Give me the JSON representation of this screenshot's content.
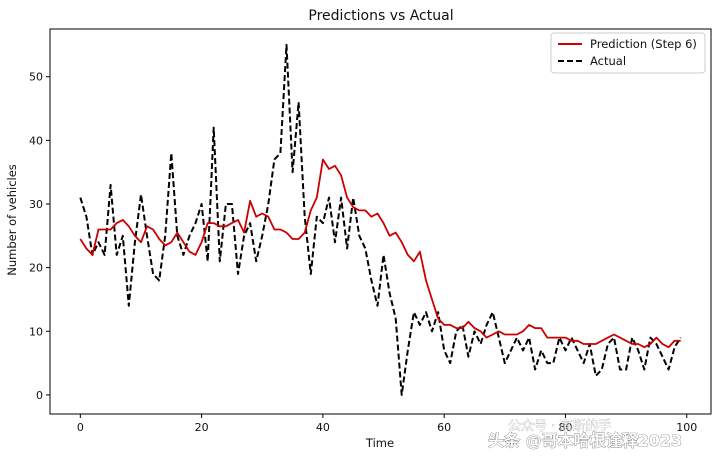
{
  "chart_data": {
    "type": "line",
    "title": "Predictions vs Actual",
    "xlabel": "Time",
    "ylabel": "Number of vehicles",
    "xlim": [
      -5,
      104
    ],
    "ylim": [
      -3,
      57.5
    ],
    "xticks": [
      0,
      20,
      40,
      60,
      80,
      100
    ],
    "yticks": [
      0,
      10,
      20,
      30,
      40,
      50
    ],
    "grid": false,
    "legend_position": "top-right",
    "series": [
      {
        "name": "Prediction (Step 6)",
        "color": "#cc0000",
        "style": "solid",
        "x": [
          0,
          1,
          2,
          3,
          4,
          5,
          6,
          7,
          8,
          9,
          10,
          11,
          12,
          13,
          14,
          15,
          16,
          17,
          18,
          19,
          20,
          21,
          22,
          23,
          24,
          25,
          26,
          27,
          28,
          29,
          30,
          31,
          32,
          33,
          34,
          35,
          36,
          37,
          38,
          39,
          40,
          41,
          42,
          43,
          44,
          45,
          46,
          47,
          48,
          49,
          50,
          51,
          52,
          53,
          54,
          55,
          56,
          57,
          58,
          59,
          60,
          61,
          62,
          63,
          64,
          65,
          66,
          67,
          68,
          69,
          70,
          71,
          72,
          73,
          74,
          75,
          76,
          77,
          78,
          79,
          80,
          81,
          82,
          83,
          84,
          85,
          86,
          87,
          88,
          89,
          90,
          91,
          92,
          93,
          94,
          95,
          96,
          97,
          98,
          99
        ],
        "values": [
          24.5,
          23,
          22,
          26,
          26,
          26,
          27,
          27.5,
          26.5,
          25,
          24,
          26.5,
          26,
          24.5,
          23.5,
          24,
          25.5,
          24,
          22.5,
          22,
          24,
          27,
          27,
          26.5,
          26.5,
          27,
          27.5,
          25.5,
          30.5,
          28,
          28.5,
          28,
          26,
          26,
          25.5,
          24.5,
          24.5,
          25.5,
          29,
          31,
          37,
          35.5,
          36,
          34.5,
          31,
          29.5,
          29,
          29,
          28,
          28.5,
          27,
          25,
          25.5,
          24,
          22,
          21,
          22.5,
          18,
          15,
          12,
          11,
          11,
          10.5,
          10.5,
          11.5,
          10.5,
          10,
          9,
          9.5,
          10,
          9.5,
          9.5,
          9.5,
          10,
          11,
          10.5,
          10.5,
          9,
          9,
          9,
          9,
          8.5,
          8.5,
          8,
          8,
          8,
          8.5,
          9,
          9.5,
          9,
          8.5,
          8,
          8,
          7.5,
          8,
          9,
          8,
          7.5,
          8.5,
          8.5
        ]
      },
      {
        "name": "Actual",
        "color": "#000000",
        "style": "dashed",
        "x": [
          0,
          1,
          2,
          3,
          4,
          5,
          6,
          7,
          8,
          9,
          10,
          11,
          12,
          13,
          14,
          15,
          16,
          17,
          18,
          19,
          20,
          21,
          22,
          23,
          24,
          25,
          26,
          27,
          28,
          29,
          30,
          31,
          32,
          33,
          34,
          35,
          36,
          37,
          38,
          39,
          40,
          41,
          42,
          43,
          44,
          45,
          46,
          47,
          48,
          49,
          50,
          51,
          52,
          53,
          54,
          55,
          56,
          57,
          58,
          59,
          60,
          61,
          62,
          63,
          64,
          65,
          66,
          67,
          68,
          69,
          70,
          71,
          72,
          73,
          74,
          75,
          76,
          77,
          78,
          79,
          80,
          81,
          82,
          83,
          84,
          85,
          86,
          87,
          88,
          89,
          90,
          91,
          92,
          93,
          94,
          95,
          96,
          97,
          98,
          99
        ],
        "values": [
          31,
          28,
          22,
          24,
          22,
          33,
          22,
          25,
          14,
          24,
          31.5,
          25,
          19,
          18,
          25,
          38,
          25,
          22,
          25,
          27,
          30,
          21,
          42,
          21,
          30,
          30,
          19,
          25,
          27,
          21,
          25,
          30,
          37,
          38,
          55,
          35,
          46,
          28,
          19,
          28,
          27,
          31,
          24,
          31,
          23,
          31,
          25,
          23,
          18,
          14,
          22,
          16,
          12,
          0,
          7,
          13,
          11,
          13,
          10,
          13,
          7,
          5,
          10,
          11,
          6,
          10,
          8,
          11,
          13,
          9,
          5,
          7,
          9,
          7,
          9,
          4,
          7,
          5,
          5,
          9,
          7,
          9,
          7,
          5,
          8,
          3,
          4,
          8,
          9,
          4,
          4,
          9,
          7,
          4,
          9,
          8,
          6,
          4,
          7.5,
          9
        ]
      }
    ]
  },
  "watermark": {
    "text1": "头条 @哥本哈根诠释2023",
    "text2": "公众号 · 高斯的手"
  }
}
